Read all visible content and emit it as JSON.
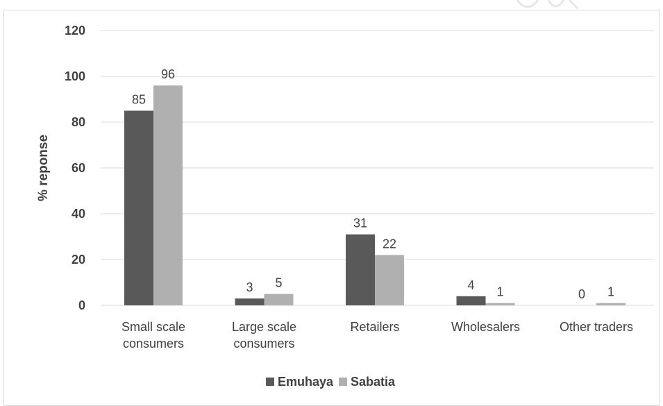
{
  "chart_data": {
    "type": "bar",
    "categories": [
      [
        "Small scale",
        "consumers"
      ],
      [
        "Large scale",
        "consumers"
      ],
      [
        "Retailers"
      ],
      [
        "Wholesalers"
      ],
      [
        "Other traders"
      ]
    ],
    "series": [
      {
        "name": "Emuhaya",
        "values": [
          85,
          3,
          31,
          4,
          0
        ],
        "color": "#595959"
      },
      {
        "name": "Sabatia",
        "values": [
          96,
          5,
          22,
          1,
          1
        ],
        "color": "#b0b0b0"
      }
    ],
    "ylabel": "% reponse",
    "ylim": [
      0,
      120
    ],
    "yticks": [
      0,
      20,
      40,
      60,
      80,
      100,
      120
    ],
    "grid": true,
    "legend": "bottom",
    "gridline_color": "#d9d9d9"
  }
}
